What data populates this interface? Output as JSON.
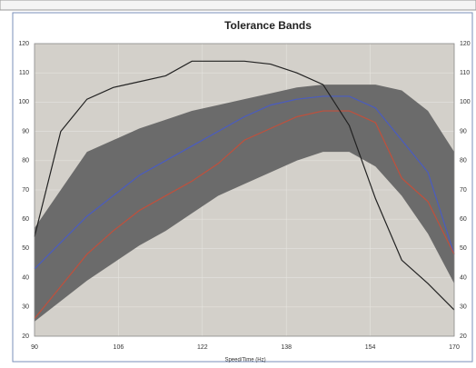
{
  "chart_data": {
    "type": "line",
    "title": "Tolerance Bands",
    "x_label": "Speed/Time (Hz)",
    "x": [
      90,
      95,
      100,
      105,
      110,
      115,
      120,
      125,
      130,
      135,
      140,
      145,
      150,
      155,
      160,
      165,
      170
    ],
    "band": {
      "color": "#6b6b6b",
      "upper": [
        57,
        70,
        83,
        87,
        91,
        94,
        97,
        99,
        101,
        103,
        105,
        106,
        106,
        106,
        104,
        97,
        83
      ],
      "lower": [
        25,
        32,
        39,
        45,
        51,
        56,
        62,
        68,
        72,
        76,
        80,
        83,
        83,
        78,
        68,
        55,
        38
      ]
    },
    "series": [
      {
        "color": "#4a5cc0",
        "values": [
          43,
          52,
          61,
          68,
          75,
          80,
          85,
          90,
          95,
          99,
          101,
          102,
          102,
          98,
          87,
          76,
          48
        ]
      },
      {
        "color": "#c0503c",
        "values": [
          26,
          37,
          48,
          56,
          63,
          68,
          73,
          79,
          87,
          91,
          95,
          97,
          97,
          93,
          74,
          66,
          48
        ]
      },
      {
        "color": "#222222",
        "values": [
          54,
          90,
          101,
          105,
          107,
          109,
          114,
          114,
          114,
          113,
          110,
          106,
          92,
          67,
          46,
          38,
          29
        ]
      }
    ],
    "xlim": [
      90,
      170
    ],
    "xticks": [
      90,
      106,
      122,
      138,
      154,
      170
    ],
    "ylim": [
      20,
      120
    ],
    "yticks": [
      20,
      30,
      40,
      50,
      60,
      70,
      80,
      90,
      100,
      110,
      120
    ],
    "grid": true,
    "background": "#d3d0ca"
  }
}
